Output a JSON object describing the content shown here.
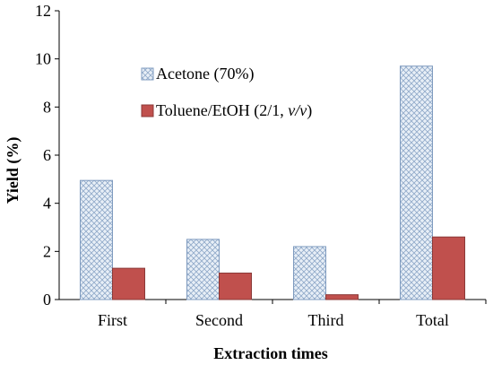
{
  "chart_data": {
    "type": "bar",
    "xlabel": "Extraction times",
    "ylabel": "Yield (%)",
    "ylim": [
      0,
      12
    ],
    "yticks": [
      0,
      2,
      4,
      6,
      8,
      10,
      12
    ],
    "grid": false,
    "legend_position": "top-left",
    "categories": [
      "First",
      "Second",
      "Third",
      "Total"
    ],
    "series": [
      {
        "name": "Acetone (70%)",
        "values": [
          4.95,
          2.5,
          2.2,
          9.7
        ],
        "fill": "#dbe6f2",
        "pattern": "crosshatch",
        "stroke": "#7f9bbf"
      },
      {
        "name": "Toluene/EtOH (2/1, v/v)",
        "name_prefix": "Toluene/EtOH (2/1, ",
        "name_italic": "v/v",
        "name_suffix": ")",
        "values": [
          1.3,
          1.1,
          0.2,
          2.6
        ],
        "fill": "#c0504d",
        "stroke": "#8b3a38"
      }
    ]
  }
}
